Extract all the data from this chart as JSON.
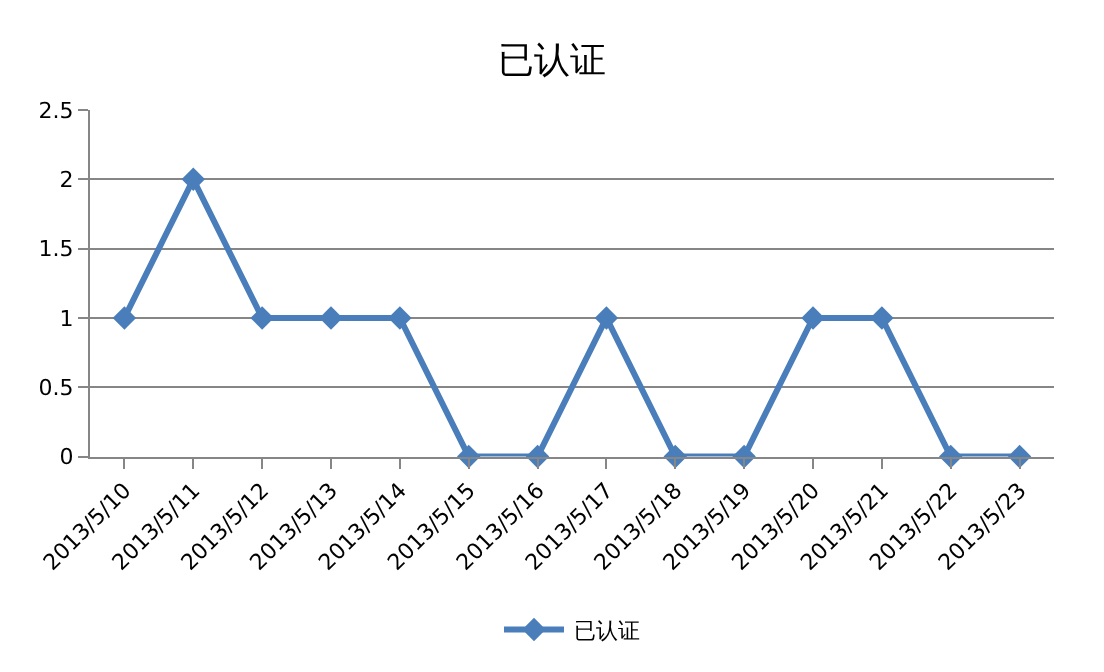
{
  "chart_data": {
    "type": "line",
    "title": "已认证",
    "categories": [
      "2013/5/10",
      "2013/5/11",
      "2013/5/12",
      "2013/5/13",
      "2013/5/14",
      "2013/5/15",
      "2013/5/16",
      "2013/5/17",
      "2013/5/18",
      "2013/5/19",
      "2013/5/20",
      "2013/5/21",
      "2013/5/22",
      "2013/5/23"
    ],
    "series": [
      {
        "name": "已认证",
        "color": "#4a7ebb",
        "values": [
          1,
          2,
          1,
          1,
          1,
          0,
          0,
          1,
          0,
          0,
          1,
          1,
          0,
          0
        ]
      }
    ],
    "ylim": [
      0,
      2.5
    ],
    "yticks": [
      0,
      0.5,
      1,
      1.5,
      2,
      2.5
    ],
    "grid": "y",
    "legend": "bottom",
    "marker": "diamond",
    "line_style": "solid"
  }
}
